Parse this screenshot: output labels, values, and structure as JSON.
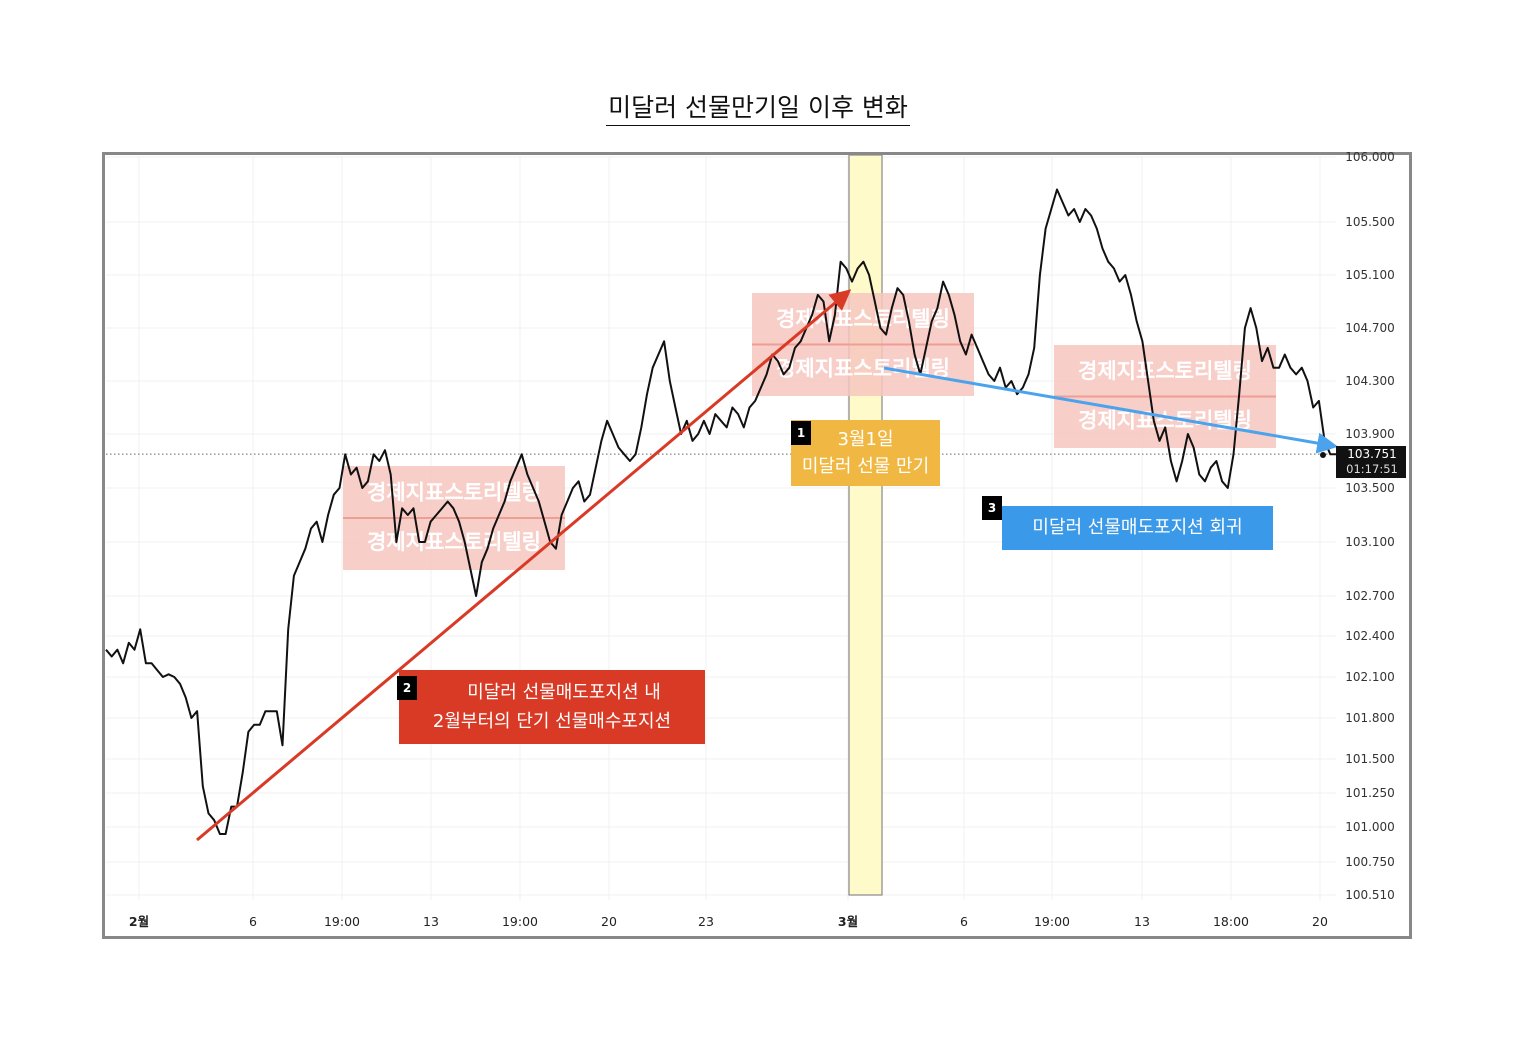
{
  "title": "미달러 선물만기일 이후 변화",
  "chart_data": {
    "type": "line",
    "ylim": [
      100.51,
      106.0
    ],
    "y_ticks": [
      "106.000",
      "105.500",
      "105.100",
      "104.700",
      "104.300",
      "103.900",
      "103.500",
      "103.100",
      "102.700",
      "102.400",
      "102.100",
      "101.800",
      "101.500",
      "101.250",
      "101.000",
      "100.750",
      "100.510"
    ],
    "x_ticks": [
      {
        "label": "2월",
        "bold": true
      },
      {
        "label": "6",
        "bold": false
      },
      {
        "label": "19:00",
        "bold": false
      },
      {
        "label": "13",
        "bold": false
      },
      {
        "label": "19:00",
        "bold": false
      },
      {
        "label": "20",
        "bold": false
      },
      {
        "label": "23",
        "bold": false
      },
      {
        "label": "3월",
        "bold": true
      },
      {
        "label": "6",
        "bold": false
      },
      {
        "label": "19:00",
        "bold": false
      },
      {
        "label": "13",
        "bold": false
      },
      {
        "label": "18:00",
        "bold": false
      },
      {
        "label": "20",
        "bold": false
      }
    ],
    "current_price": "103.751",
    "current_time": "01:17:51",
    "current_value": 103.751,
    "series": [
      {
        "points": [
          [
            0,
            102.3
          ],
          [
            0.4,
            102.25
          ],
          [
            0.8,
            102.3
          ],
          [
            1.2,
            102.2
          ],
          [
            1.6,
            102.35
          ],
          [
            2,
            102.3
          ],
          [
            2.4,
            102.45
          ],
          [
            2.8,
            102.2
          ],
          [
            3.2,
            102.2
          ],
          [
            3.6,
            102.15
          ],
          [
            4,
            102.1
          ],
          [
            4.4,
            102.12
          ],
          [
            4.8,
            102.1
          ],
          [
            5.2,
            102.05
          ],
          [
            5.6,
            101.95
          ],
          [
            6,
            101.8
          ],
          [
            6.4,
            101.85
          ],
          [
            6.8,
            101.3
          ],
          [
            7.2,
            101.1
          ],
          [
            7.6,
            101.05
          ],
          [
            8,
            100.95
          ],
          [
            8.4,
            100.95
          ],
          [
            8.8,
            101.15
          ],
          [
            9.2,
            101.15
          ],
          [
            9.6,
            101.4
          ],
          [
            10,
            101.7
          ],
          [
            10.4,
            101.75
          ],
          [
            10.8,
            101.75
          ],
          [
            11.2,
            101.85
          ],
          [
            11.6,
            101.85
          ],
          [
            12,
            101.85
          ],
          [
            12.4,
            101.6
          ],
          [
            12.8,
            102.45
          ],
          [
            13.2,
            102.85
          ],
          [
            13.6,
            102.95
          ],
          [
            14,
            103.05
          ],
          [
            14.4,
            103.2
          ],
          [
            14.8,
            103.25
          ],
          [
            15.2,
            103.1
          ],
          [
            15.6,
            103.3
          ],
          [
            16,
            103.45
          ],
          [
            16.4,
            103.5
          ],
          [
            16.8,
            103.75
          ],
          [
            17.2,
            103.6
          ],
          [
            17.6,
            103.65
          ],
          [
            18,
            103.5
          ],
          [
            18.4,
            103.55
          ],
          [
            18.8,
            103.75
          ],
          [
            19.2,
            103.7
          ],
          [
            19.6,
            103.78
          ],
          [
            20,
            103.6
          ],
          [
            20.4,
            103.1
          ],
          [
            20.8,
            103.35
          ],
          [
            21.2,
            103.3
          ],
          [
            21.6,
            103.35
          ],
          [
            22,
            103.1
          ],
          [
            22.4,
            103.1
          ],
          [
            22.8,
            103.25
          ],
          [
            23.2,
            103.3
          ],
          [
            23.6,
            103.35
          ],
          [
            24,
            103.4
          ],
          [
            24.4,
            103.35
          ],
          [
            24.8,
            103.25
          ],
          [
            25.2,
            103.1
          ],
          [
            25.6,
            102.9
          ],
          [
            26,
            102.7
          ],
          [
            26.4,
            102.95
          ],
          [
            26.8,
            103.05
          ],
          [
            27.2,
            103.2
          ],
          [
            27.6,
            103.3
          ],
          [
            28,
            103.4
          ],
          [
            28.4,
            103.55
          ],
          [
            28.8,
            103.65
          ],
          [
            29.2,
            103.75
          ],
          [
            29.6,
            103.6
          ],
          [
            30,
            103.5
          ],
          [
            30.4,
            103.4
          ],
          [
            30.8,
            103.25
          ],
          [
            31.2,
            103.1
          ],
          [
            31.6,
            103.05
          ],
          [
            32,
            103.3
          ],
          [
            32.4,
            103.4
          ],
          [
            32.8,
            103.5
          ],
          [
            33.2,
            103.55
          ],
          [
            33.6,
            103.4
          ],
          [
            34,
            103.45
          ],
          [
            34.4,
            103.65
          ],
          [
            34.8,
            103.85
          ],
          [
            35.2,
            104.0
          ],
          [
            35.6,
            103.9
          ],
          [
            36,
            103.8
          ],
          [
            36.4,
            103.75
          ],
          [
            36.8,
            103.7
          ],
          [
            37.2,
            103.75
          ],
          [
            37.6,
            103.95
          ],
          [
            38,
            104.2
          ],
          [
            38.4,
            104.4
          ],
          [
            38.8,
            104.5
          ],
          [
            39.2,
            104.6
          ],
          [
            39.6,
            104.3
          ],
          [
            40,
            104.1
          ],
          [
            40.4,
            103.9
          ],
          [
            40.8,
            104.0
          ],
          [
            41.2,
            103.85
          ],
          [
            41.6,
            103.9
          ],
          [
            42,
            104.0
          ],
          [
            42.4,
            103.9
          ],
          [
            42.8,
            104.05
          ],
          [
            43.2,
            104.0
          ],
          [
            43.6,
            103.95
          ],
          [
            44,
            104.1
          ],
          [
            44.4,
            104.05
          ],
          [
            44.8,
            103.95
          ],
          [
            45.2,
            104.1
          ],
          [
            45.6,
            104.15
          ],
          [
            46,
            104.25
          ],
          [
            46.4,
            104.35
          ],
          [
            46.8,
            104.5
          ],
          [
            47.2,
            104.45
          ],
          [
            47.6,
            104.35
          ],
          [
            48,
            104.4
          ],
          [
            48.4,
            104.55
          ],
          [
            48.8,
            104.6
          ],
          [
            49.2,
            104.7
          ],
          [
            49.6,
            104.8
          ],
          [
            50,
            104.95
          ],
          [
            50.4,
            104.9
          ],
          [
            50.8,
            104.6
          ],
          [
            51.2,
            104.8
          ],
          [
            51.6,
            105.2
          ],
          [
            52,
            105.15
          ],
          [
            52.4,
            105.05
          ],
          [
            52.8,
            105.15
          ],
          [
            53.2,
            105.2
          ],
          [
            53.6,
            105.1
          ],
          [
            54,
            104.9
          ],
          [
            54.4,
            104.7
          ],
          [
            54.8,
            104.65
          ],
          [
            55.2,
            104.85
          ],
          [
            55.6,
            105.0
          ],
          [
            56,
            104.95
          ],
          [
            56.4,
            104.75
          ],
          [
            56.8,
            104.5
          ],
          [
            57.2,
            104.35
          ],
          [
            57.6,
            104.55
          ],
          [
            58,
            104.75
          ],
          [
            58.4,
            104.85
          ],
          [
            58.8,
            105.05
          ],
          [
            59.2,
            104.95
          ],
          [
            59.6,
            104.8
          ],
          [
            60,
            104.6
          ],
          [
            60.4,
            104.5
          ],
          [
            60.8,
            104.65
          ],
          [
            61.2,
            104.55
          ],
          [
            61.6,
            104.45
          ],
          [
            62,
            104.35
          ],
          [
            62.4,
            104.3
          ],
          [
            62.8,
            104.4
          ],
          [
            63.2,
            104.25
          ],
          [
            63.6,
            104.3
          ],
          [
            64,
            104.2
          ],
          [
            64.4,
            104.25
          ],
          [
            64.8,
            104.35
          ],
          [
            65.2,
            104.55
          ],
          [
            65.6,
            105.1
          ],
          [
            66,
            105.45
          ],
          [
            66.4,
            105.6
          ],
          [
            66.8,
            105.75
          ],
          [
            67.2,
            105.65
          ],
          [
            67.6,
            105.55
          ],
          [
            68,
            105.6
          ],
          [
            68.4,
            105.5
          ],
          [
            68.8,
            105.6
          ],
          [
            69.2,
            105.55
          ],
          [
            69.6,
            105.45
          ],
          [
            70,
            105.3
          ],
          [
            70.4,
            105.2
          ],
          [
            70.8,
            105.15
          ],
          [
            71.2,
            105.05
          ],
          [
            71.6,
            105.1
          ],
          [
            72,
            104.95
          ],
          [
            72.4,
            104.75
          ],
          [
            72.8,
            104.6
          ],
          [
            73.2,
            104.3
          ],
          [
            73.6,
            104.0
          ],
          [
            74,
            103.85
          ],
          [
            74.4,
            103.95
          ],
          [
            74.8,
            103.7
          ],
          [
            75.2,
            103.55
          ],
          [
            75.6,
            103.7
          ],
          [
            76,
            103.9
          ],
          [
            76.4,
            103.8
          ],
          [
            76.8,
            103.6
          ],
          [
            77.2,
            103.55
          ],
          [
            77.6,
            103.65
          ],
          [
            78,
            103.7
          ],
          [
            78.4,
            103.55
          ],
          [
            78.8,
            103.5
          ],
          [
            79.2,
            103.75
          ],
          [
            79.6,
            104.2
          ],
          [
            80,
            104.7
          ],
          [
            80.4,
            104.85
          ],
          [
            80.8,
            104.7
          ],
          [
            81.2,
            104.45
          ],
          [
            81.6,
            104.55
          ],
          [
            82,
            104.4
          ],
          [
            82.4,
            104.4
          ],
          [
            82.8,
            104.5
          ],
          [
            83.2,
            104.4
          ],
          [
            83.6,
            104.35
          ],
          [
            84,
            104.4
          ],
          [
            84.4,
            104.3
          ],
          [
            84.8,
            104.1
          ],
          [
            85.2,
            104.15
          ],
          [
            85.6,
            103.85
          ],
          [
            86,
            103.75
          ],
          [
            86.4,
            103.75
          ]
        ]
      }
    ]
  },
  "watermark": "경제지표스토리텔링",
  "annotations": {
    "a1": {
      "number": "1",
      "line1": "3월1일",
      "line2": "미달러 선물 만기"
    },
    "a2": {
      "number": "2",
      "line1": "미달러 선물매도포지션 내",
      "line2": "2월부터의 단기 선물매수포지션"
    },
    "a3": {
      "number": "3",
      "line1": "미달러 선물매도포지션 회귀"
    }
  },
  "colors": {
    "line": "#111111",
    "up_arrow": "#d93a26",
    "down_arrow": "#4aa3ec",
    "highlight": "#fffac9",
    "a1_bg": "#f0b843",
    "a2_bg": "#d93a26",
    "a3_bg": "#3a99e8",
    "watermark_bg": "#f7c6c0"
  },
  "highlight": {
    "from": 54.8,
    "to": 57.2
  }
}
